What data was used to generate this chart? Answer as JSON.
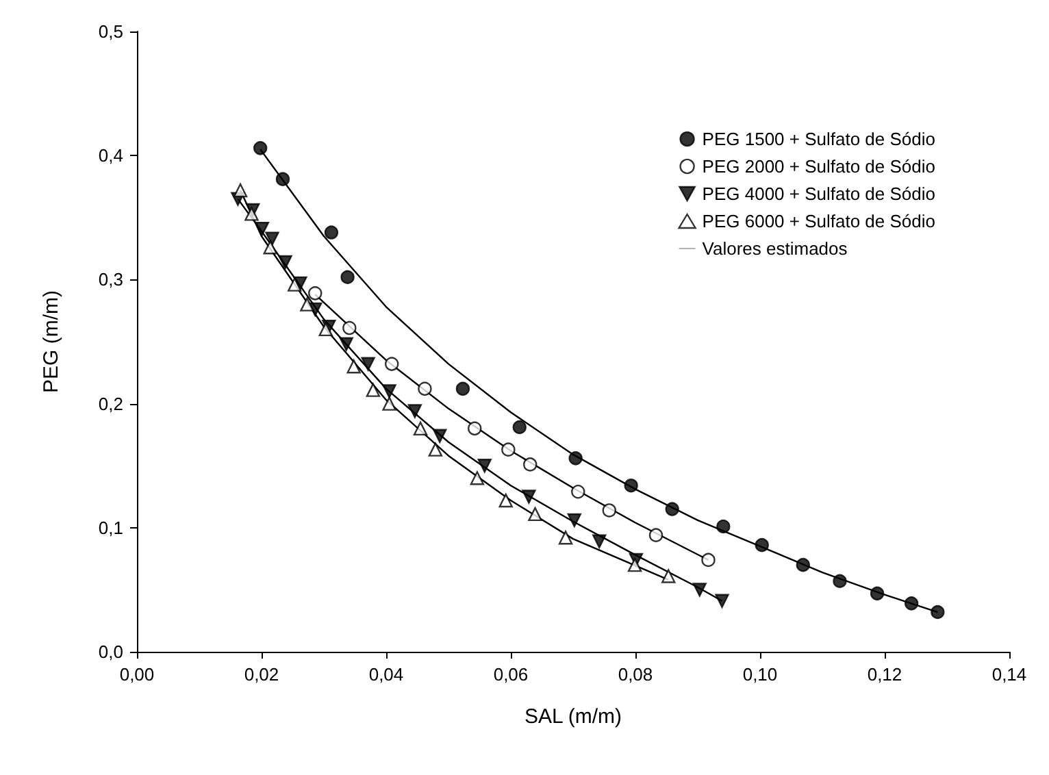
{
  "chart_data": {
    "type": "scatter",
    "xlabel": "SAL (m/m)",
    "ylabel": "PEG (m/m)",
    "xlim": [
      0,
      0.14
    ],
    "xticks": [
      {
        "value": 0,
        "label": "0,00"
      },
      {
        "value": 0.02,
        "label": "0,02"
      },
      {
        "value": 0.04,
        "label": "0,04"
      },
      {
        "value": 0.06,
        "label": "0,06"
      },
      {
        "value": 0.08,
        "label": "0,08"
      },
      {
        "value": 0.1,
        "label": "0,10"
      },
      {
        "value": 0.12,
        "label": "0,12"
      },
      {
        "value": 0.14,
        "label": "0,14"
      }
    ],
    "ylim": [
      0,
      0.5
    ],
    "yticks": [
      {
        "value": 0,
        "label": "0,0"
      },
      {
        "value": 0.1,
        "label": "0,1"
      },
      {
        "value": 0.2,
        "label": "0,2"
      },
      {
        "value": 0.3,
        "label": "0,3"
      },
      {
        "value": 0.4,
        "label": "0,4"
      },
      {
        "value": 0.5,
        "label": "0,5"
      }
    ],
    "grid": false,
    "legend": "top right",
    "series": [
      {
        "name": "PEG 1500 + Sulfato de Sódio",
        "marker": "circle",
        "color": "#000000",
        "x": [
          0.0198,
          0.0234,
          0.0312,
          0.0338,
          0.0523,
          0.0614,
          0.0704,
          0.0793,
          0.0859,
          0.0941,
          0.1003,
          0.1069,
          0.1128,
          0.1188,
          0.1243,
          0.1285
        ],
        "values": [
          0.406,
          0.381,
          0.338,
          0.302,
          0.212,
          0.181,
          0.156,
          0.134,
          0.115,
          0.101,
          0.086,
          0.07,
          0.057,
          0.047,
          0.039,
          0.032
        ]
      },
      {
        "name": "PEG 2000 + Sulfato de Sódio",
        "marker": "circle",
        "color": "#ffffff",
        "x": [
          0.0286,
          0.0341,
          0.0409,
          0.0462,
          0.0542,
          0.0596,
          0.0631,
          0.0708,
          0.0758,
          0.0833,
          0.0917
        ],
        "values": [
          0.289,
          0.261,
          0.232,
          0.212,
          0.18,
          0.163,
          0.151,
          0.129,
          0.114,
          0.094,
          0.074
        ]
      },
      {
        "name": "PEG 4000 + Sulfato de Sódio",
        "marker": "triangle-down",
        "color": "#000000",
        "x": [
          0.0162,
          0.0186,
          0.0201,
          0.0217,
          0.0238,
          0.0262,
          0.0286,
          0.0308,
          0.0336,
          0.0371,
          0.0405,
          0.0446,
          0.0486,
          0.0558,
          0.0629,
          0.0702,
          0.0742,
          0.0801,
          0.0903,
          0.0939
        ],
        "values": [
          0.365,
          0.356,
          0.341,
          0.333,
          0.314,
          0.297,
          0.276,
          0.262,
          0.248,
          0.232,
          0.21,
          0.194,
          0.174,
          0.15,
          0.125,
          0.106,
          0.089,
          0.074,
          0.05,
          0.041
        ]
      },
      {
        "name": "PEG 6000 + Sulfato de Sódio",
        "marker": "triangle",
        "color": "#ffffff",
        "x": [
          0.0166,
          0.0184,
          0.0214,
          0.0253,
          0.0273,
          0.0303,
          0.0348,
          0.0379,
          0.0405,
          0.0455,
          0.0479,
          0.0546,
          0.0592,
          0.0639,
          0.0688,
          0.0799,
          0.0853
        ],
        "values": [
          0.372,
          0.353,
          0.326,
          0.296,
          0.28,
          0.26,
          0.23,
          0.211,
          0.2,
          0.18,
          0.163,
          0.14,
          0.122,
          0.111,
          0.092,
          0.07,
          0.061
        ]
      },
      {
        "name": "Valores estimados",
        "type": "line",
        "marker": "none",
        "color": "#000000",
        "x": [
          0.0198,
          0.03,
          0.04,
          0.05,
          0.06,
          0.07,
          0.08,
          0.09,
          0.1,
          0.11,
          0.12,
          0.1285
        ],
        "values": [
          0.405,
          0.335,
          0.278,
          0.232,
          0.193,
          0.159,
          0.131,
          0.106,
          0.085,
          0.064,
          0.046,
          0.032
        ]
      },
      {
        "type": "line",
        "marker": "none",
        "color": "#000000",
        "x": [
          0.0286,
          0.04,
          0.05,
          0.06,
          0.07,
          0.08,
          0.0917
        ],
        "values": [
          0.288,
          0.235,
          0.196,
          0.162,
          0.132,
          0.104,
          0.074
        ]
      },
      {
        "type": "line",
        "marker": "none",
        "color": "#000000",
        "x": [
          0.0162,
          0.02,
          0.03,
          0.04,
          0.05,
          0.06,
          0.07,
          0.08,
          0.09,
          0.0939
        ],
        "values": [
          0.365,
          0.339,
          0.268,
          0.212,
          0.169,
          0.134,
          0.105,
          0.078,
          0.052,
          0.041
        ]
      },
      {
        "type": "line",
        "marker": "none",
        "color": "#000000",
        "x": [
          0.0166,
          0.02,
          0.03,
          0.04,
          0.05,
          0.06,
          0.07,
          0.0853
        ],
        "values": [
          0.372,
          0.335,
          0.262,
          0.203,
          0.158,
          0.122,
          0.091,
          0.058
        ]
      }
    ]
  }
}
